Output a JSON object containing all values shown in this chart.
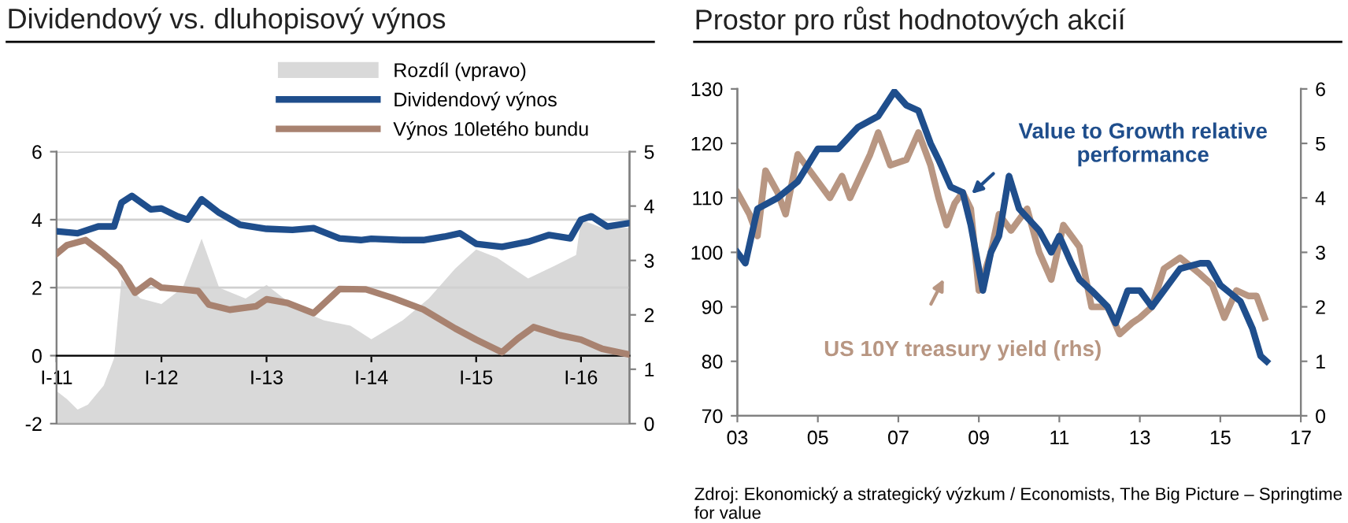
{
  "chart_data": [
    {
      "type": "line",
      "title": "Dividendový vs. dluhopisový výnos",
      "legend": "top right",
      "grid": "y",
      "xlim": [
        "2011-01-01",
        "2016-06-18"
      ],
      "xticks": [
        {
          "value": "2011-01-01",
          "label": "I-11"
        },
        {
          "value": "2012-01-01",
          "label": "I-12"
        },
        {
          "value": "2013-01-01",
          "label": "I-13"
        },
        {
          "value": "2014-01-01",
          "label": "I-14"
        },
        {
          "value": "2015-01-01",
          "label": "I-15"
        },
        {
          "value": "2016-01-01",
          "label": "I-16"
        }
      ],
      "ylim": [
        -2,
        6
      ],
      "yticks": [
        -2,
        0,
        2,
        4,
        6
      ],
      "y2lim": [
        0,
        5
      ],
      "y2ticks": [
        0,
        1,
        2,
        3,
        4,
        5
      ],
      "series": [
        {
          "name": "Rozdíl (vpravo)",
          "type": "area",
          "axis": "y2",
          "color": "#d9d9d9",
          "x": [
            "2011-01-01",
            "2011-02-06",
            "2011-03-15",
            "2011-04-20",
            "2011-06-14",
            "2011-07-20",
            "2011-08-15",
            "2011-10-20",
            "2012-01-01",
            "2012-03-15",
            "2012-05-20",
            "2012-07-20",
            "2012-10-20",
            "2013-01-01",
            "2013-04-20",
            "2013-07-20",
            "2013-10-20",
            "2014-01-01",
            "2014-04-20",
            "2014-07-20",
            "2014-10-20",
            "2015-01-01",
            "2015-03-15",
            "2015-07-01",
            "2015-10-01",
            "2015-12-15",
            "2016-01-01",
            "2016-03-15",
            "2016-06-18"
          ],
          "values": [
            0.6,
            0.45,
            0.26,
            0.35,
            0.7,
            1.2,
            2.65,
            2.3,
            2.2,
            2.5,
            3.4,
            2.5,
            2.3,
            2.55,
            2.1,
            1.9,
            1.8,
            1.55,
            1.9,
            2.3,
            2.85,
            3.2,
            3.05,
            2.67,
            2.9,
            3.1,
            3.75,
            3.6,
            3.6
          ]
        },
        {
          "name": "Dividendový výnos",
          "color": "#1f4e8c",
          "x": [
            "2011-01-01",
            "2011-03-15",
            "2011-05-26",
            "2011-07-20",
            "2011-08-15",
            "2011-09-20",
            "2011-11-25",
            "2012-01-01",
            "2012-02-25",
            "2012-04-01",
            "2012-05-20",
            "2012-07-20",
            "2012-10-01",
            "2013-01-01",
            "2013-04-01",
            "2013-06-14",
            "2013-09-12",
            "2013-11-25",
            "2014-01-01",
            "2014-04-20",
            "2014-07-01",
            "2014-09-12",
            "2014-11-06",
            "2015-01-01",
            "2015-04-01",
            "2015-07-01",
            "2015-09-12",
            "2015-11-25",
            "2016-01-01",
            "2016-02-06",
            "2016-04-01",
            "2016-06-18"
          ],
          "values": [
            3.66,
            3.6,
            3.8,
            3.8,
            4.5,
            4.7,
            4.3,
            4.33,
            4.1,
            4.0,
            4.6,
            4.2,
            3.85,
            3.73,
            3.7,
            3.75,
            3.45,
            3.4,
            3.44,
            3.4,
            3.4,
            3.5,
            3.6,
            3.29,
            3.2,
            3.35,
            3.55,
            3.45,
            4.0,
            4.1,
            3.8,
            3.9
          ]
        },
        {
          "name": "Výnos 10letého bundu",
          "color": "#a88270",
          "x": [
            "2011-01-01",
            "2011-02-06",
            "2011-04-12",
            "2011-06-14",
            "2011-08-08",
            "2011-10-01",
            "2011-11-25",
            "2012-01-01",
            "2012-03-15",
            "2012-05-08",
            "2012-06-14",
            "2012-08-26",
            "2012-11-25",
            "2013-01-01",
            "2013-03-15",
            "2013-06-14",
            "2013-09-12",
            "2013-12-13",
            "2014-03-15",
            "2014-07-01",
            "2014-10-20",
            "2015-01-01",
            "2015-04-01",
            "2015-05-26",
            "2015-07-20",
            "2015-10-20",
            "2016-01-01",
            "2016-03-15",
            "2016-06-18"
          ],
          "values": [
            3.0,
            3.25,
            3.4,
            3.0,
            2.6,
            1.85,
            2.2,
            2.0,
            1.95,
            1.9,
            1.5,
            1.35,
            1.45,
            1.66,
            1.55,
            1.25,
            1.96,
            1.95,
            1.7,
            1.36,
            0.8,
            0.47,
            0.1,
            0.5,
            0.84,
            0.6,
            0.47,
            0.2,
            0.03
          ]
        }
      ]
    },
    {
      "type": "line",
      "title": "Prostor pro růst hodnotových akcií",
      "grid": false,
      "xlim": [
        2003,
        2017
      ],
      "xticks": [
        {
          "value": 2003,
          "label": "03"
        },
        {
          "value": 2005,
          "label": "05"
        },
        {
          "value": 2007,
          "label": "07"
        },
        {
          "value": 2009,
          "label": "09"
        },
        {
          "value": 2011,
          "label": "11"
        },
        {
          "value": 2013,
          "label": "13"
        },
        {
          "value": 2015,
          "label": "15"
        },
        {
          "value": 2017,
          "label": "17"
        }
      ],
      "ylim": [
        70,
        130
      ],
      "yticks": [
        70,
        80,
        90,
        100,
        110,
        120,
        130
      ],
      "y2lim": [
        0,
        6
      ],
      "y2ticks": [
        0,
        1,
        2,
        3,
        4,
        5,
        6
      ],
      "annotations": [
        "Zdroj: Ekonomický a strategický výzkum / Economists, The Big Picture – Springtime for value"
      ],
      "series": [
        {
          "name": "Value to Growth relative performance",
          "color": "#1f4e8c",
          "x": [
            2003,
            2003.2,
            2003.5,
            2004,
            2004.5,
            2005,
            2005.5,
            2006,
            2006.5,
            2006.9,
            2007.2,
            2007.5,
            2007.8,
            2008,
            2008.3,
            2008.6,
            2008.8,
            2009.1,
            2009.3,
            2009.5,
            2009.75,
            2010,
            2010.5,
            2010.8,
            2011,
            2011.3,
            2011.5,
            2011.8,
            2012.2,
            2012.4,
            2012.7,
            2013,
            2013.3,
            2013.6,
            2014,
            2014.5,
            2014.7,
            2015,
            2015.5,
            2015.8,
            2016,
            2016.15
          ],
          "values": [
            100,
            98,
            108,
            110,
            113,
            119,
            119,
            123,
            125,
            129.5,
            127,
            126,
            120,
            117,
            112,
            111,
            105,
            93,
            100,
            103,
            114,
            108,
            104,
            100,
            103,
            98,
            95,
            93,
            90,
            87,
            93,
            93,
            90,
            93,
            97,
            98,
            98,
            94,
            91,
            86,
            81,
            80
          ]
        },
        {
          "name": "US 10Y treasury yield (rhs)",
          "axis": "y2",
          "color": "#b89682",
          "x": [
            2003,
            2003.3,
            2003.5,
            2003.7,
            2004,
            2004.2,
            2004.5,
            2005,
            2005.3,
            2005.6,
            2005.8,
            2006.3,
            2006.5,
            2006.8,
            2007.2,
            2007.5,
            2007.8,
            2008,
            2008.2,
            2008.4,
            2008.6,
            2008.8,
            2009,
            2009.3,
            2009.5,
            2009.8,
            2010.2,
            2010.5,
            2010.8,
            2011.1,
            2011.5,
            2011.8,
            2012.2,
            2012.5,
            2012.8,
            2013,
            2013.3,
            2013.6,
            2014,
            2014.5,
            2014.8,
            2015.1,
            2015.4,
            2015.7,
            2015.9,
            2016.1
          ],
          "values": [
            4.1,
            3.7,
            3.3,
            4.5,
            4.1,
            3.7,
            4.8,
            4.3,
            4.0,
            4.4,
            4.0,
            4.8,
            5.2,
            4.6,
            4.7,
            5.2,
            4.6,
            4.0,
            3.5,
            3.9,
            4.1,
            3.8,
            2.3,
            3.0,
            3.7,
            3.4,
            3.8,
            3.0,
            2.5,
            3.5,
            3.1,
            2.0,
            2.0,
            1.5,
            1.7,
            1.8,
            2.0,
            2.7,
            2.9,
            2.6,
            2.4,
            1.8,
            2.3,
            2.2,
            2.2,
            1.8
          ]
        }
      ]
    }
  ]
}
